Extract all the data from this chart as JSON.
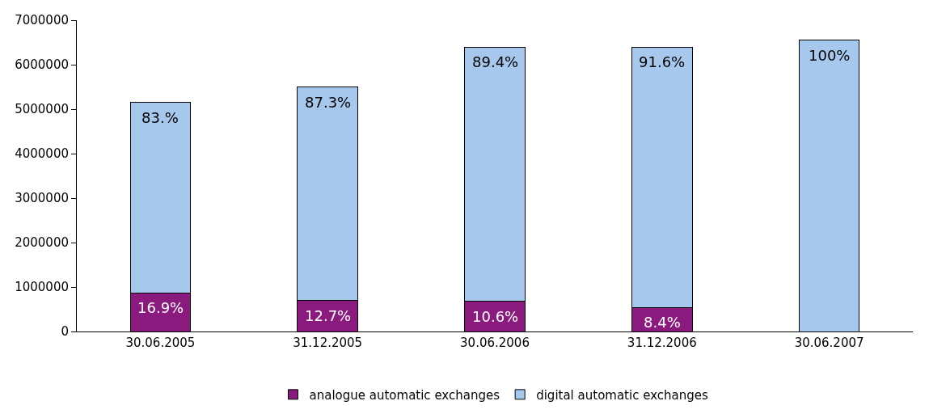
{
  "chart_data": {
    "type": "bar",
    "stacked": true,
    "categories": [
      "30.06.2005",
      "31.12.2005",
      "30.06.2006",
      "31.12.2006",
      "30.06.2007"
    ],
    "series": [
      {
        "name": "analogue automatic exchanges",
        "color": "#8b1a7e",
        "values": [
          870000,
          700000,
          680000,
          540000,
          0
        ]
      },
      {
        "name": "digital automatic exchanges",
        "color": "#a6c8ec",
        "values": [
          4280000,
          4800000,
          5720000,
          5860000,
          6550000
        ]
      }
    ],
    "annotations": [
      {
        "text": "16.9%",
        "x": "30.06.2005",
        "y": 870000
      },
      {
        "text": "12.7%",
        "x": "31.12.2005",
        "y": 700000
      },
      {
        "text": "10.6%",
        "x": "30.06.2006",
        "y": 680000
      },
      {
        "text": "8.4%",
        "x": "31.12.2006",
        "y": 540000
      },
      {
        "text": "83.%",
        "x": "30.06.2005",
        "y": 5150000
      },
      {
        "text": "87.3%",
        "x": "31.12.2005",
        "y": 5500000
      },
      {
        "text": "89.4%",
        "x": "30.06.2006",
        "y": 6400000
      },
      {
        "text": "91.6%",
        "x": "31.12.2006",
        "y": 6400000
      },
      {
        "text": "100%",
        "x": "30.06.2007",
        "y": 6550000
      }
    ],
    "ylim": [
      0,
      7000000
    ],
    "yticks": [
      0,
      1000000,
      2000000,
      3000000,
      4000000,
      5000000,
      6000000,
      7000000
    ],
    "grid": false,
    "legend": "bottom"
  }
}
